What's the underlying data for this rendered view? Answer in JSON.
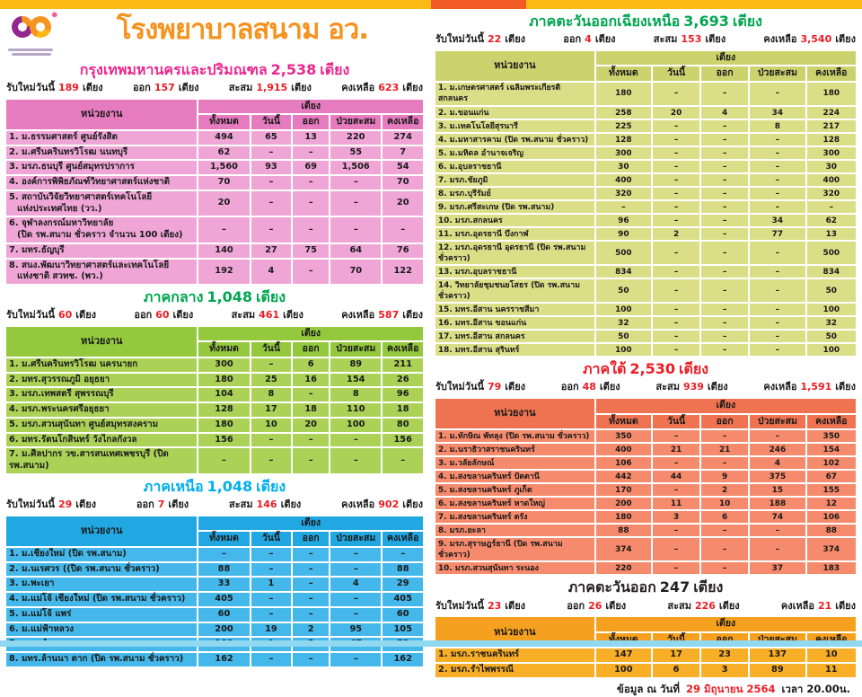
{
  "accent_red": "#ed1c24",
  "top_bar": {
    "gold": "#fdb913",
    "orange_segment": "#f15a24"
  },
  "bottom_bar_color": "#8fd8f0",
  "header": {
    "title": "โรงพยาบาลสนาม อว.",
    "title_color": "#f6921e"
  },
  "labels": {
    "unit_col": "หน่วยงาน",
    "beds_group": "เตียง",
    "cols": [
      "ทั้งหมด",
      "วันนี้",
      "ออก",
      "ป่วยสะสม",
      "คงเหลือ"
    ],
    "stats": [
      "รับใหม่วันนี้",
      "ออก",
      "สะสม",
      "คงเหลือ"
    ],
    "beds_unit": "เตียง"
  },
  "sections": [
    {
      "id": "bangkok-metro",
      "column": "left",
      "title": "กรุงเทพมหานครและปริมณฑล",
      "total": "2,538",
      "colors": {
        "title": "#ec268f",
        "header": "#e77bbf",
        "body": "#efa6d6"
      },
      "stats": [
        "189",
        "157",
        "1,915",
        "623"
      ],
      "rows": [
        {
          "name": "1. ม.ธรรมศาสตร์ ศูนย์รังสิต",
          "v": [
            "494",
            "65",
            "13",
            "220",
            "274"
          ]
        },
        {
          "name": "2. ม.ศรีนครินทรวิโรฒ นนทบุรี",
          "v": [
            "62",
            "–",
            "–",
            "55",
            "7"
          ]
        },
        {
          "name": "3. มรภ.ธนบุรี ศูนย์สมุทรปราการ",
          "v": [
            "1,560",
            "93",
            "69",
            "1,506",
            "54"
          ]
        },
        {
          "name": "4. องค์การพิพิธภัณฑ์วิทยาศาสตร์แห่งชาติ",
          "v": [
            "70",
            "–",
            "–",
            "–",
            "70"
          ]
        },
        {
          "name": "5. สถาบันวิจัยวิทยาศาสตร์เทคโนโลยี",
          "name2": "แห่งประเทศไทย (วว.)",
          "v": [
            "20",
            "–",
            "–",
            "–",
            "20"
          ]
        },
        {
          "name": "6. จุฬาลงกรณ์มหาวิทยาลัย",
          "name2": "(ปิด รพ.สนาม ชั่วคราว จำนวน 100 เตียง)",
          "v": [
            "–",
            "–",
            "–",
            "–",
            "–"
          ]
        },
        {
          "name": "7. มทร.ธัญบุรี",
          "v": [
            "140",
            "27",
            "75",
            "64",
            "76"
          ]
        },
        {
          "name": "8. สนง.พัฒนาวิทยาศาสตร์และเทคโนโลยี",
          "name2": "แห่งชาติ สวทช. (พว.)",
          "v": [
            "192",
            "4",
            "–",
            "70",
            "122"
          ]
        }
      ]
    },
    {
      "id": "central",
      "column": "left",
      "title": "ภาคกลาง",
      "total": "1,048",
      "colors": {
        "title": "#00a651",
        "header": "#94c83d",
        "body": "#abd257"
      },
      "stats": [
        "60",
        "60",
        "461",
        "587"
      ],
      "rows": [
        {
          "name": "1. ม.ศรีนครินทรวิโรฒ นครนายก",
          "v": [
            "300",
            "–",
            "6",
            "89",
            "211"
          ]
        },
        {
          "name": "2. มทร.สุวรรณภูมิ อยุธยา",
          "v": [
            "180",
            "25",
            "16",
            "154",
            "26"
          ]
        },
        {
          "name": "3. มรภ.เทพสตรี สุพรรณบุรี",
          "v": [
            "104",
            "8",
            "–",
            "8",
            "96"
          ]
        },
        {
          "name": "4. มรภ.พระนครศรีอยุธยา",
          "v": [
            "128",
            "17",
            "18",
            "110",
            "18"
          ]
        },
        {
          "name": "5. มรภ.สวนสุนันทา ศูนย์สมุทรสงคราม",
          "v": [
            "180",
            "10",
            "20",
            "100",
            "80"
          ]
        },
        {
          "name": "6. มทร.รัตนโกสินทร์ วังไกลกังวล",
          "v": [
            "156",
            "–",
            "–",
            "–",
            "156"
          ]
        },
        {
          "name": "7. ม.ศิลปากร วข.สารสนเทศเพชรบุรี (ปิด รพ.สนาม)",
          "v": [
            "–",
            "–",
            "–",
            "–",
            "–"
          ]
        }
      ]
    },
    {
      "id": "north",
      "column": "left",
      "title": "ภาคเหนือ",
      "total": "1,048",
      "colors": {
        "title": "#00aeef",
        "header": "#21a7e1",
        "body": "#44b8ea"
      },
      "stats": [
        "29",
        "7",
        "146",
        "902"
      ],
      "rows": [
        {
          "name": "1. ม.เชียงใหม่  (ปิด รพ.สนาม)",
          "v": [
            "–",
            "–",
            "–",
            "–",
            "–"
          ]
        },
        {
          "name": "2. ม.นเรศวร  ((ปิด รพ.สนาม ชั่วคราว)",
          "v": [
            "88",
            "–",
            "–",
            "–",
            "88"
          ]
        },
        {
          "name": "3. ม.พะเยา",
          "v": [
            "33",
            "1",
            "–",
            "4",
            "29"
          ]
        },
        {
          "name": "4. ม.แม่โจ้  เชียงใหม่ (ปิด รพ.สนาม ชั่วคราว)",
          "v": [
            "405",
            "–",
            "–",
            "–",
            "405"
          ]
        },
        {
          "name": "5. ม.แม่โจ้  แพร่",
          "v": [
            "60",
            "–",
            "–",
            "–",
            "60"
          ]
        },
        {
          "name": "6. ม.แม่ฟ้าหลวง",
          "v": [
            "200",
            "19",
            "2",
            "95",
            "105"
          ]
        },
        {
          "name": "7. มรภ.กำแพงเพชร",
          "v": [
            "100",
            "9",
            "5",
            "47",
            "53"
          ]
        },
        {
          "name": "8. มทร.ล้านนา ตาก  (ปิด รพ.สนาม ชั่วคราว)",
          "v": [
            "162",
            "–",
            "–",
            "–",
            "162"
          ]
        }
      ]
    },
    {
      "id": "northeast",
      "column": "right",
      "title": "ภาคตะวันออกเฉียงเหนือ",
      "total": "3,693",
      "colors": {
        "title": "#00a651",
        "header": "#ccd36e",
        "body": "#dade87"
      },
      "stats": [
        "22",
        "4",
        "153",
        "3,540"
      ],
      "rows": [
        {
          "name": "1. ม.เกษตรศาสตร์ เฉลิมพระเกียรติ สกลนคร",
          "v": [
            "180",
            "–",
            "–",
            "–",
            "180"
          ]
        },
        {
          "name": "2. ม.ขอนแก่น",
          "v": [
            "258",
            "20",
            "4",
            "34",
            "224"
          ]
        },
        {
          "name": "3. ม.เทคโนโลยีสุรนารี",
          "v": [
            "225",
            "–",
            "–",
            "8",
            "217"
          ]
        },
        {
          "name": "4. ม.มหาสารคาม  (ปิด รพ.สนาม ชั่วคราว)",
          "v": [
            "128",
            "–",
            "–",
            "–",
            "128"
          ]
        },
        {
          "name": "5. ม.มหิดล อำนาจเจริญ",
          "v": [
            "300",
            "–",
            "–",
            "–",
            "300"
          ]
        },
        {
          "name": "6. ม.อุบลราชธานี",
          "v": [
            "30",
            "–",
            "–",
            "–",
            "30"
          ]
        },
        {
          "name": "7. มรภ.ชัยภูมิ",
          "v": [
            "400",
            "–",
            "–",
            "–",
            "400"
          ]
        },
        {
          "name": "8. มรภ.บุรีรัมย์",
          "v": [
            "320",
            "–",
            "–",
            "–",
            "320"
          ]
        },
        {
          "name": "9. มรภ.ศรีสะเกษ  (ปิด รพ.สนาม)",
          "v": [
            "–",
            "–",
            "–",
            "–",
            "–"
          ]
        },
        {
          "name": "10. มรภ.สกลนคร",
          "v": [
            "96",
            "–",
            "–",
            "34",
            "62"
          ]
        },
        {
          "name": "11. มรภ.อุดรธานี บึงกาฬ",
          "v": [
            "90",
            "2",
            "–",
            "77",
            "13"
          ]
        },
        {
          "name": "12. มรภ.อุดรธานี อุดรธานี (ปิด รพ.สนาม ชั่วคราว)",
          "v": [
            "500",
            "–",
            "–",
            "–",
            "500"
          ]
        },
        {
          "name": "13. มรภ.อุบลราชธานี",
          "v": [
            "834",
            "–",
            "–",
            "–",
            "834"
          ]
        },
        {
          "name": "14. วิทยาลัยชุมชนยโสธร  (ปิด รพ.สนาม ชั่วคราว)",
          "v": [
            "50",
            "–",
            "–",
            "–",
            "50"
          ]
        },
        {
          "name": "15. มทร.อีสาน นครราชสีมา",
          "v": [
            "100",
            "–",
            "–",
            "–",
            "100"
          ]
        },
        {
          "name": "16. มทร.อีสาน ขอนแก่น",
          "v": [
            "32",
            "–",
            "–",
            "–",
            "32"
          ]
        },
        {
          "name": "17. มทร.อีสาน สกลนคร",
          "v": [
            "50",
            "–",
            "–",
            "–",
            "50"
          ]
        },
        {
          "name": "18. มทร.อีสาน สุรินทร์",
          "v": [
            "100",
            "–",
            "–",
            "–",
            "100"
          ]
        }
      ]
    },
    {
      "id": "south",
      "column": "right",
      "title": "ภาคใต้",
      "total": "2,530",
      "colors": {
        "title": "#ed1c24",
        "header": "#ef7350",
        "body": "#f58a6c"
      },
      "stats": [
        "79",
        "48",
        "939",
        "1,591"
      ],
      "rows": [
        {
          "name": "1. ม.ทักษิณ พัทลุง  (ปิด รพ.สนาม ชั่วคราว)",
          "v": [
            "350",
            "–",
            "–",
            "–",
            "350"
          ]
        },
        {
          "name": "2. ม.นราธิวาสราชนครินทร์",
          "v": [
            "400",
            "21",
            "21",
            "246",
            "154"
          ]
        },
        {
          "name": "3. ม.วลัยลักษณ์",
          "v": [
            "106",
            "–",
            "–",
            "4",
            "102"
          ]
        },
        {
          "name": "4. ม.สงขลานครินทร์ ปัตตานี",
          "v": [
            "442",
            "44",
            "9",
            "375",
            "67"
          ]
        },
        {
          "name": "5. ม.สงขลานครินทร์ ภูเก็ต",
          "v": [
            "170",
            "–",
            "2",
            "15",
            "155"
          ]
        },
        {
          "name": "6. ม.สงขลานครินทร์  หาดใหญ่",
          "v": [
            "200",
            "11",
            "10",
            "188",
            "12"
          ]
        },
        {
          "name": "7. ม.สงขลานครินทร์ ตรัง",
          "v": [
            "180",
            "3",
            "6",
            "74",
            "106"
          ]
        },
        {
          "name": "8. มรภ.ยะลา",
          "v": [
            "88",
            "–",
            "–",
            "–",
            "88"
          ]
        },
        {
          "name": "9. มรภ.สุราษฎร์ธานี  (ปิด รพ.สนาม ชั่วคราว)",
          "v": [
            "374",
            "–",
            "–",
            "–",
            "374"
          ]
        },
        {
          "name": "10. มรภ.สวนสุนันทา ระนอง",
          "v": [
            "220",
            "–",
            "–",
            "37",
            "183"
          ]
        }
      ]
    },
    {
      "id": "east",
      "column": "right",
      "title": "ภาคตะวันออก",
      "total": "247",
      "colors": {
        "title": "#231f20",
        "header": "#f5a01e",
        "body": "#f9ae27"
      },
      "stats": [
        "23",
        "26",
        "226",
        "21"
      ],
      "rows": [
        {
          "name": "1. มรภ.ราชนครินทร์",
          "v": [
            "147",
            "17",
            "23",
            "137",
            "10"
          ]
        },
        {
          "name": "2. มรภ.รำไพพรรณี",
          "v": [
            "100",
            "6",
            "3",
            "89",
            "11"
          ]
        }
      ]
    }
  ],
  "footer": {
    "prefix": "ข้อมูล ณ วันที่",
    "date": "29 มิถุนายน 2564",
    "suffix": "เวลา 20.00น."
  }
}
